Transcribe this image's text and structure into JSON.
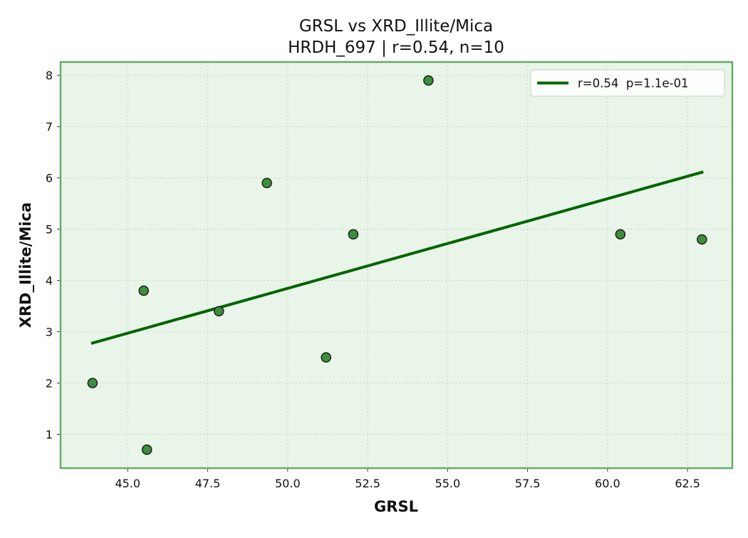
{
  "chart_data": {
    "type": "scatter",
    "title": "GRSL vs XRD_Illite/Mica",
    "subtitle": "HRDH_697 | r=0.54, n=10",
    "xlabel": "GRSL",
    "ylabel": "XRD_Illite/Mica",
    "xlim": [
      42.9,
      63.9
    ],
    "ylim": [
      0.34,
      8.26
    ],
    "xticks": [
      "45.0",
      "47.5",
      "50.0",
      "52.5",
      "55.0",
      "57.5",
      "60.0",
      "62.5"
    ],
    "yticks": [
      "1",
      "2",
      "3",
      "4",
      "5",
      "6",
      "7",
      "8"
    ],
    "grid": true,
    "legend_position": "top-right",
    "series": [
      {
        "kind": "points",
        "points": [
          {
            "x": 43.9,
            "y": 2.0
          },
          {
            "x": 45.5,
            "y": 3.8
          },
          {
            "x": 45.6,
            "y": 0.7
          },
          {
            "x": 47.85,
            "y": 3.4
          },
          {
            "x": 49.35,
            "y": 5.9
          },
          {
            "x": 51.2,
            "y": 2.5
          },
          {
            "x": 52.05,
            "y": 4.9
          },
          {
            "x": 54.4,
            "y": 7.9
          },
          {
            "x": 60.4,
            "y": 4.9
          },
          {
            "x": 62.95,
            "y": 4.8
          }
        ]
      },
      {
        "kind": "fit-line",
        "name": "r=0.54  p=1.1e-01",
        "points": [
          {
            "x": 43.9,
            "y": 2.78
          },
          {
            "x": 62.95,
            "y": 6.11
          }
        ]
      }
    ],
    "colors": {
      "plot_background": "#e8f5e8",
      "frame": "#6aaa6a",
      "grid": "#c8d4c8",
      "marker_fill": "#3e8e3e",
      "marker_edge": "#1c2a1c",
      "fit_line": "#006400"
    }
  }
}
